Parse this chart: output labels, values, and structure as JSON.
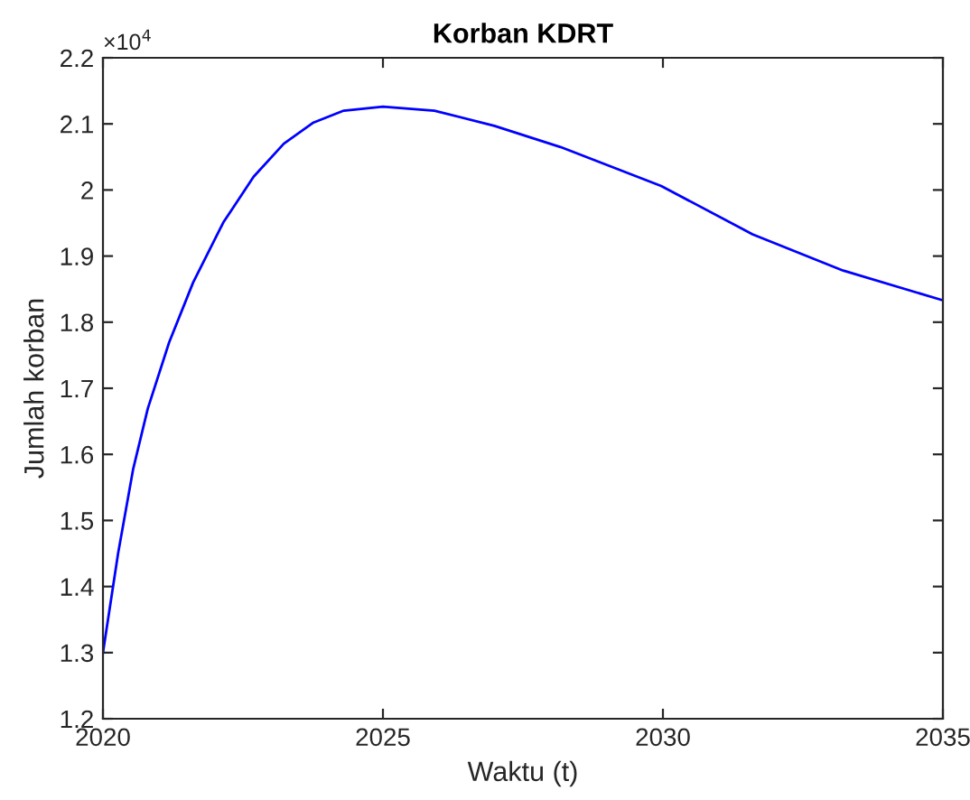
{
  "chart_data": {
    "type": "line",
    "title": "Korban KDRT",
    "xlabel": "Waktu (t)",
    "ylabel": "Jumlah korban",
    "annotations": [
      "×10$^{4}$"
    ],
    "x": [
      2020,
      2020.27,
      2020.54,
      2020.8,
      2021.18,
      2021.61,
      2022.15,
      2022.69,
      2023.23,
      2023.76,
      2024.3,
      2025.0,
      2025.92,
      2026.99,
      2028.17,
      2029.97,
      2031.6,
      2033.22,
      2035
    ],
    "series": [
      {
        "color": "#0000ff",
        "values": [
          1.3,
          1.45,
          1.578,
          1.669,
          1.769,
          1.86,
          1.951,
          2.02,
          2.07,
          2.102,
          2.12,
          2.126,
          2.12,
          2.097,
          2.065,
          2.006,
          1.933,
          1.878,
          1.833
        ]
      }
    ],
    "xlim": [
      2020,
      2035
    ],
    "xticks": [
      2020,
      2025,
      2030,
      2035
    ],
    "ylim": [
      1.2,
      2.2
    ],
    "yticks": [
      1.2,
      1.3,
      1.4,
      1.5,
      1.6,
      1.7,
      1.8,
      1.9,
      2,
      2.1,
      2.2
    ],
    "grid": false,
    "legend": false
  }
}
